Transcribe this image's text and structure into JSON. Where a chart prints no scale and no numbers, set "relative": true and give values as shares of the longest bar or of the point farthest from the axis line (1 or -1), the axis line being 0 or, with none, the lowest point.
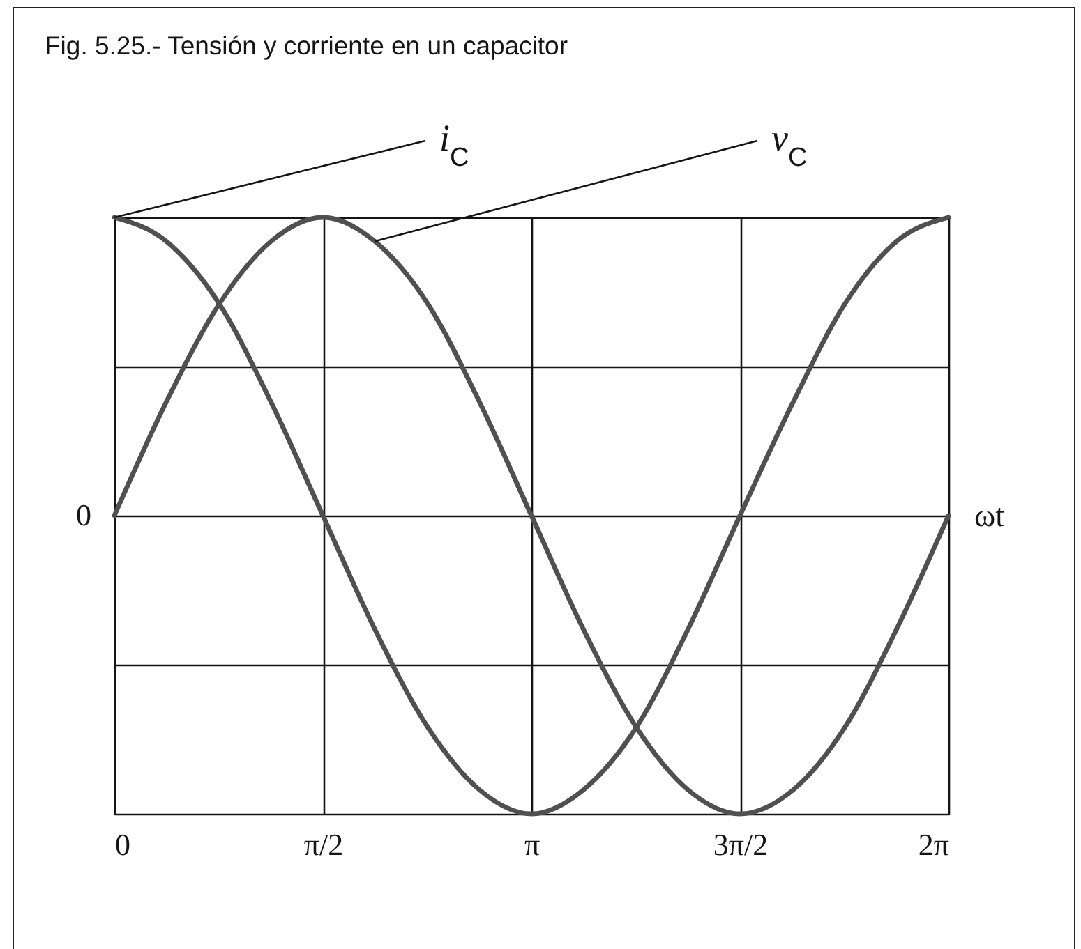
{
  "chart_data": {
    "type": "line",
    "title": "Fig. 5.25.- Tensión y corriente en un capacitor",
    "xlabel": "ωt",
    "annotations": [
      "0"
    ],
    "x": [
      0,
      0.39,
      0.79,
      1.18,
      1.57,
      1.96,
      2.36,
      2.75,
      3.14,
      3.53,
      3.93,
      4.32,
      4.71,
      5.11,
      5.5,
      5.89,
      6.28
    ],
    "series": [
      {
        "name": "i$_{C}$",
        "color": "#505050",
        "values": [
          1,
          0.92,
          0.71,
          0.38,
          0,
          -0.38,
          -0.71,
          -0.92,
          -1,
          -0.92,
          -0.71,
          -0.38,
          0,
          0.38,
          0.71,
          0.92,
          1
        ]
      },
      {
        "name": "v$_{C}$",
        "color": "#505050",
        "values": [
          0,
          0.38,
          0.71,
          0.92,
          1,
          0.92,
          0.71,
          0.38,
          0,
          -0.38,
          -0.71,
          -0.92,
          -1,
          -0.92,
          -0.71,
          -0.38,
          0
        ]
      }
    ],
    "xlim": [
      0,
      6.28
    ],
    "xticks": [
      0,
      {
        "value": 1.57,
        "label": "π/2"
      },
      {
        "value": 3.14,
        "label": "π"
      },
      {
        "value": 4.71,
        "label": "3π/2"
      },
      {
        "value": 6.28,
        "label": "2π"
      }
    ],
    "grid": true,
    "relative": true
  }
}
